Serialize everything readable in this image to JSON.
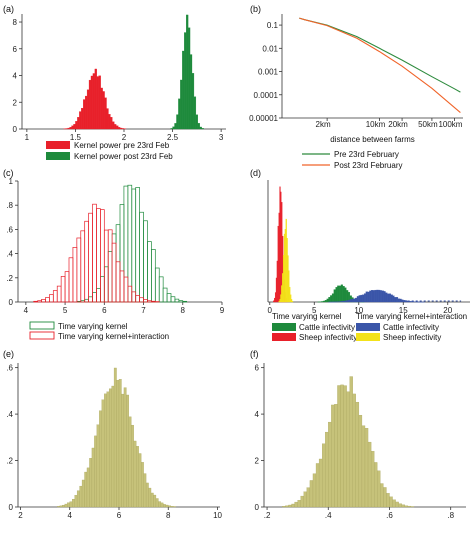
{
  "chart_data": [
    {
      "panel_label": "(a)",
      "type": "histogram",
      "xlim": [
        0.95,
        3.05
      ],
      "ylim": [
        0,
        8.6
      ],
      "x_ticks": [
        1,
        1.5,
        2,
        2.5,
        3
      ],
      "y_ticks": [
        0,
        2,
        4,
        6,
        8
      ],
      "x_tick_labels": [
        "1",
        "1.5",
        "2",
        "2.5",
        "3"
      ],
      "y_tick_labels": [
        "0",
        "2",
        "4",
        "6",
        "8"
      ],
      "series": [
        {
          "name": "Kernel power pre 23rd Feb",
          "color": "#e8202a",
          "fill": "solid",
          "bin_width": 0.02,
          "mean": 1.7,
          "sd": 0.095,
          "peak": 4.2
        },
        {
          "name": "Kernel power post 23rd Feb",
          "color": "#1e8a3c",
          "fill": "solid",
          "bin_width": 0.02,
          "mean": 2.65,
          "sd": 0.05,
          "peak": 8.0
        }
      ]
    },
    {
      "panel_label": "(b)",
      "type": "line",
      "xlabel": "distance between farms",
      "x_scale": "log",
      "y_scale": "log",
      "xlim": [
        0.5,
        130
      ],
      "ylim": [
        1e-05,
        0.3
      ],
      "x_ticks": [
        2,
        10,
        20,
        50,
        100
      ],
      "x_tick_labels": [
        "2km",
        "10km",
        "20km",
        "50km",
        "100km"
      ],
      "y_ticks": [
        0.1,
        0.01,
        0.001,
        0.0001,
        1e-05
      ],
      "y_tick_labels": [
        "0.1",
        "0.01",
        "0.001",
        "0.0001",
        "0.00001"
      ],
      "series": [
        {
          "name": "Pre 23rd February",
          "color": "#2e8b3e",
          "x": [
            0.85,
            1,
            2,
            5,
            10,
            20,
            50,
            100,
            120
          ],
          "y": [
            0.2,
            0.17,
            0.1,
            0.032,
            0.01,
            0.0031,
            0.0006,
            0.00018,
            0.00013
          ]
        },
        {
          "name": "Post 23rd February",
          "color": "#f0642a",
          "x": [
            0.85,
            1,
            2,
            5,
            10,
            20,
            50,
            100,
            120
          ],
          "y": [
            0.2,
            0.17,
            0.095,
            0.027,
            0.0072,
            0.0017,
            0.00019,
            2.8e-05,
            1.7e-05
          ]
        }
      ]
    },
    {
      "panel_label": "(c)",
      "type": "histogram",
      "xlim": [
        3.8,
        9
      ],
      "ylim": [
        0,
        1.0
      ],
      "x_ticks": [
        4,
        5,
        6,
        7,
        8,
        9
      ],
      "x_tick_labels": [
        "4",
        "5",
        "6",
        "7",
        "8",
        "9"
      ],
      "y_ticks": [
        0,
        0.2,
        0.4,
        0.6,
        0.8,
        1
      ],
      "y_tick_labels": [
        "0",
        ".2",
        ".4",
        ".6",
        ".8",
        "1"
      ],
      "series": [
        {
          "name": "Time varying kernel",
          "color": "#1e8a3c",
          "fill": "hollow",
          "bin_width": 0.1,
          "mean": 6.7,
          "sd": 0.42,
          "peak": 0.95
        },
        {
          "name": "Time varying kernel+interaction",
          "color": "#e8202a",
          "fill": "hollow",
          "bin_width": 0.1,
          "mean": 5.75,
          "sd": 0.48,
          "peak": 0.78
        }
      ]
    },
    {
      "panel_label": "(d)",
      "type": "histogram",
      "xlim": [
        -0.2,
        22.5
      ],
      "ylim": [
        0,
        10
      ],
      "x_ticks": [
        0,
        5,
        10,
        15,
        20
      ],
      "x_tick_labels": [
        "0",
        "5",
        "10",
        "15",
        "20"
      ],
      "y_ticks": [],
      "legend_groups": [
        "Time varying kernel",
        "Time varying kernel+interaction"
      ],
      "series": [
        {
          "name": "Cattle infectivity",
          "group": "Time varying kernel",
          "color": "#1e8a3c",
          "fill": "solid",
          "bin_width": 0.2,
          "mean": 8.0,
          "sd": 0.8,
          "peak": 1.4
        },
        {
          "name": "Sheep infectivity",
          "group": "Time varying kernel",
          "color": "#e8202a",
          "fill": "solid",
          "bin_width": 0.1,
          "mean": 1.2,
          "sd": 0.25,
          "peak": 9.5
        },
        {
          "name": "Cattle infectivity",
          "group": "Time varying kernel+interaction",
          "color": "#3a55a8",
          "fill": "solid",
          "bin_width": 0.2,
          "mean": 12.0,
          "sd": 1.6,
          "peak": 1.0
        },
        {
          "name": "Sheep infectivity",
          "group": "Time varying kernel+interaction",
          "color": "#f3e21a",
          "fill": "solid",
          "bin_width": 0.1,
          "mean": 1.8,
          "sd": 0.25,
          "peak": 6.5
        }
      ]
    },
    {
      "panel_label": "(e)",
      "type": "histogram",
      "xlim": [
        1.9,
        10.1
      ],
      "ylim": [
        0,
        0.62
      ],
      "x_ticks": [
        2,
        4,
        6,
        8,
        10
      ],
      "x_tick_labels": [
        "2",
        "4",
        "6",
        "8",
        "10"
      ],
      "y_ticks": [
        0,
        0.2,
        0.4,
        0.6
      ],
      "y_tick_labels": [
        "0",
        ".2",
        ".4",
        ".6"
      ],
      "series": [
        {
          "color": "#c6c27a",
          "edge": "#a7a35a",
          "fill": "solid",
          "bin_width": 0.1,
          "mean": 5.85,
          "sd": 0.72,
          "peak": 0.57
        }
      ]
    },
    {
      "panel_label": "(f)",
      "type": "histogram",
      "xlim": [
        0.19,
        0.85
      ],
      "ylim": [
        0,
        6.2
      ],
      "x_ticks": [
        0.2,
        0.4,
        0.6,
        0.8
      ],
      "x_tick_labels": [
        ".2",
        ".4",
        ".6",
        ".8"
      ],
      "y_ticks": [
        0,
        2,
        4,
        6
      ],
      "y_tick_labels": [
        "0",
        "2",
        "4",
        "6"
      ],
      "series": [
        {
          "color": "#c6c27a",
          "edge": "#a7a35a",
          "fill": "solid",
          "bin_width": 0.01,
          "mean": 0.46,
          "sd": 0.065,
          "peak": 5.3
        }
      ]
    }
  ]
}
